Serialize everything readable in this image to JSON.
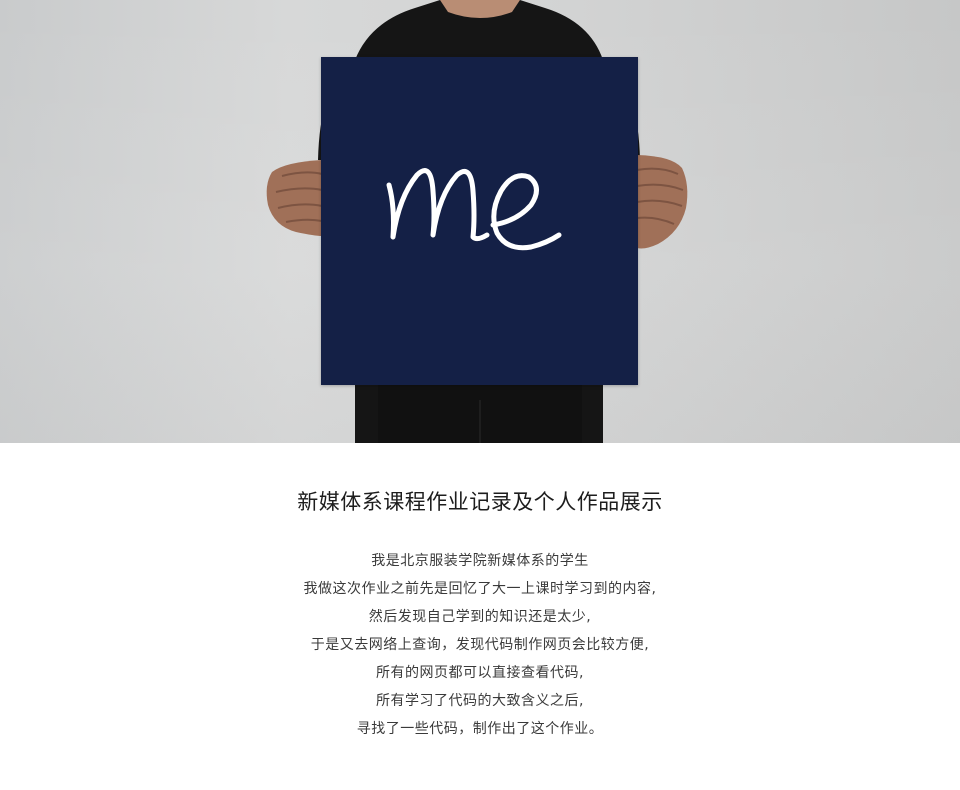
{
  "hero": {
    "sign_text": "me",
    "sign_color": "#142046",
    "background_color": "#d2d3d3"
  },
  "intro": {
    "title": "新媒体系课程作业记录及个人作品展示",
    "lines": [
      "我是北京服装学院新媒体系的学生",
      "我做这次作业之前先是回忆了大一上课时学习到的内容,",
      "然后发现自己学到的知识还是太少,",
      "于是又去网络上查询，发现代码制作网页会比较方便,",
      "所有的网页都可以直接查看代码,",
      "所有学习了代码的大致含义之后,",
      "寻找了一些代码，制作出了这个作业。"
    ]
  }
}
